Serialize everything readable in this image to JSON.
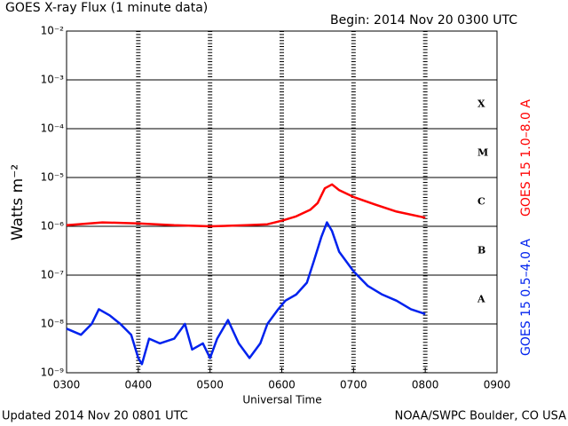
{
  "chart_data": {
    "type": "line",
    "title": "GOES X-ray Flux (1 minute data)",
    "subtitle": "Begin: 2014 Nov 20 0300 UTC",
    "xlabel": "Universal Time",
    "ylabel": "Watts m⁻²",
    "footer_left": "Updated 2014 Nov 20 0801 UTC",
    "footer_right": "NOAA/SWPC Boulder, CO USA",
    "log_y": true,
    "grid": true,
    "xlim": [
      3,
      9
    ],
    "xticks": [
      {
        "value": 3,
        "label": "0300"
      },
      {
        "value": 4,
        "label": "0400"
      },
      {
        "value": 5,
        "label": "0500"
      },
      {
        "value": 6,
        "label": "0600"
      },
      {
        "value": 7,
        "label": "0700"
      },
      {
        "value": 8,
        "label": "0800"
      },
      {
        "value": 9,
        "label": "0900"
      }
    ],
    "ylim": [
      1e-09,
      0.01
    ],
    "yticks": [
      {
        "value": 0.01,
        "label": "10⁻²"
      },
      {
        "value": 0.001,
        "label": "10⁻³"
      },
      {
        "value": 0.0001,
        "label": "10⁻⁴"
      },
      {
        "value": 1e-05,
        "label": "10⁻⁵"
      },
      {
        "value": 1e-06,
        "label": "10⁻⁶"
      },
      {
        "value": 1e-07,
        "label": "10⁻⁷"
      },
      {
        "value": 1e-08,
        "label": "10⁻⁸"
      },
      {
        "value": 1e-09,
        "label": "10⁻⁹"
      }
    ],
    "flare_classes": [
      {
        "label": "X",
        "value": 0.0001
      },
      {
        "label": "M",
        "value": 1e-05
      },
      {
        "label": "C",
        "value": 1e-06
      },
      {
        "label": "B",
        "value": 1e-07
      },
      {
        "label": "A",
        "value": 1e-08
      }
    ],
    "series": [
      {
        "name": "GOES 15 1.0–8.0 A",
        "color": "#ff0000",
        "x": [
          3.0,
          3.5,
          4.0,
          4.5,
          5.0,
          5.5,
          5.8,
          6.0,
          6.2,
          6.4,
          6.5,
          6.6,
          6.7,
          6.8,
          7.0,
          7.3,
          7.6,
          8.0
        ],
        "values": [
          1.05e-06,
          1.2e-06,
          1.15e-06,
          1.05e-06,
          1e-06,
          1.05e-06,
          1.1e-06,
          1.3e-06,
          1.6e-06,
          2.2e-06,
          3e-06,
          6e-06,
          7.2e-06,
          5.5e-06,
          4e-06,
          2.8e-06,
          2e-06,
          1.5e-06
        ]
      },
      {
        "name": "GOES 15 0.5–4.0 A",
        "color": "#0022ee",
        "x": [
          3.0,
          3.2,
          3.35,
          3.45,
          3.6,
          3.75,
          3.9,
          4.0,
          4.05,
          4.15,
          4.3,
          4.5,
          4.65,
          4.75,
          4.9,
          5.0,
          5.1,
          5.25,
          5.4,
          5.55,
          5.7,
          5.8,
          5.95,
          6.05,
          6.2,
          6.35,
          6.45,
          6.55,
          6.63,
          6.7,
          6.8,
          7.0,
          7.2,
          7.4,
          7.6,
          7.8,
          8.0
        ],
        "values": [
          8e-09,
          6e-09,
          1e-08,
          2e-08,
          1.5e-08,
          1e-08,
          6e-09,
          2e-09,
          1.5e-09,
          5e-09,
          4e-09,
          5e-09,
          1e-08,
          3e-09,
          4e-09,
          2e-09,
          5e-09,
          1.2e-08,
          4e-09,
          2e-09,
          4e-09,
          1e-08,
          2e-08,
          3e-08,
          4e-08,
          7e-08,
          2e-07,
          6e-07,
          1.2e-06,
          8e-07,
          3e-07,
          1.2e-07,
          6e-08,
          4e-08,
          3e-08,
          2e-08,
          1.6e-08
        ]
      }
    ]
  }
}
